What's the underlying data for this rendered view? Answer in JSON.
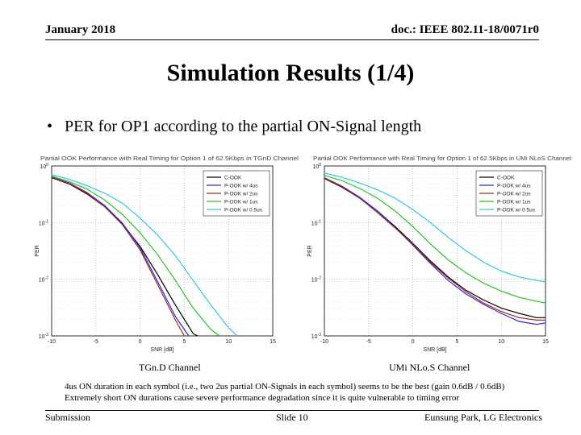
{
  "header": {
    "date": "January 2018",
    "doc": "doc.: IEEE 802.11-18/0071r0"
  },
  "title": "Simulation Results (1/4)",
  "bullet": {
    "symbol": "•",
    "text": "PER for OP1 according to the partial ON-Signal length"
  },
  "chart_data": [
    {
      "type": "line",
      "title": "Partial OOK Performance with Real Timing for Option 1 of 62.5Kbps in TGnD Channel",
      "xlabel": "SNR [dB]",
      "ylabel": "PER",
      "yscale": "log",
      "xlim": [
        -10,
        15
      ],
      "ylim": [
        0.001,
        1
      ],
      "xticks": [
        -10,
        -5,
        0,
        5,
        10,
        15
      ],
      "yticks": [
        {
          "value": 1,
          "base": "10",
          "exp": "0"
        },
        {
          "value": 0.1,
          "base": "10",
          "exp": "-1"
        },
        {
          "value": 0.01,
          "base": "10",
          "exp": "-2"
        },
        {
          "value": 0.001,
          "base": "10",
          "exp": "-3"
        }
      ],
      "grid": true,
      "legend_position": "top-right",
      "caption": "TGn.D Channel",
      "series": [
        {
          "name": "C-OOK",
          "color": "#000000",
          "x": [
            -10,
            -8,
            -6,
            -4,
            -2,
            0,
            2,
            4,
            6,
            6.5
          ],
          "y": [
            0.62,
            0.48,
            0.32,
            0.19,
            0.095,
            0.038,
            0.012,
            0.0035,
            0.0011,
            0.001
          ]
        },
        {
          "name": "P-OOK w/ 4us",
          "color": "#2a2ad6",
          "x": [
            -10,
            -8,
            -6,
            -4,
            -2,
            0,
            2,
            4,
            5.5
          ],
          "y": [
            0.64,
            0.5,
            0.34,
            0.2,
            0.098,
            0.036,
            0.009,
            0.0022,
            0.001
          ]
        },
        {
          "name": "P-OOK w/ 2us",
          "color": "#a0282a",
          "x": [
            -10,
            -8,
            -6,
            -4,
            -2,
            0,
            2,
            4,
            5
          ],
          "y": [
            0.63,
            0.49,
            0.33,
            0.19,
            0.092,
            0.033,
            0.008,
            0.0019,
            0.001
          ]
        },
        {
          "name": "P-OOK w/ 1us",
          "color": "#22c622",
          "x": [
            -10,
            -8,
            -6,
            -4,
            -2,
            0,
            2,
            4,
            6,
            8,
            9
          ],
          "y": [
            0.66,
            0.53,
            0.39,
            0.25,
            0.14,
            0.066,
            0.027,
            0.0095,
            0.0031,
            0.0013,
            0.001
          ]
        },
        {
          "name": "P-OOK w/ 0.5us",
          "color": "#2ec6e6",
          "x": [
            -10,
            -8,
            -6,
            -4,
            -2,
            0,
            2,
            4,
            6,
            8,
            10,
            11
          ],
          "y": [
            0.7,
            0.58,
            0.45,
            0.33,
            0.22,
            0.12,
            0.06,
            0.026,
            0.0095,
            0.0035,
            0.0014,
            0.001
          ]
        }
      ]
    },
    {
      "type": "line",
      "title": "Partial OOK Performance with Real Timing for Option 1 of 62.5Kbps in UMi NLoS Channel",
      "xlabel": "SNR [dB]",
      "ylabel": "PER",
      "yscale": "log",
      "xlim": [
        -10,
        15
      ],
      "ylim": [
        0.001,
        1
      ],
      "xticks": [
        -10,
        -5,
        0,
        5,
        10,
        15
      ],
      "yticks": [
        {
          "value": 1,
          "base": "10",
          "exp": "0"
        },
        {
          "value": 0.1,
          "base": "10",
          "exp": "-1"
        },
        {
          "value": 0.01,
          "base": "10",
          "exp": "-2"
        },
        {
          "value": 0.001,
          "base": "10",
          "exp": "-3"
        }
      ],
      "grid": true,
      "legend_position": "top-right",
      "caption": "UMi NLo.S Channel",
      "series": [
        {
          "name": "C-OOK",
          "color": "#000000",
          "x": [
            -10,
            -8,
            -6,
            -4,
            -2,
            0,
            2,
            4,
            6,
            8,
            10,
            12,
            14,
            15
          ],
          "y": [
            0.6,
            0.42,
            0.27,
            0.16,
            0.085,
            0.043,
            0.021,
            0.011,
            0.0064,
            0.0043,
            0.0031,
            0.0025,
            0.0021,
            0.0021
          ]
        },
        {
          "name": "P-OOK w/ 4us",
          "color": "#2a2ad6",
          "x": [
            -10,
            -8,
            -6,
            -4,
            -2,
            0,
            2,
            4,
            6,
            8,
            10,
            12,
            14,
            15
          ],
          "y": [
            0.62,
            0.44,
            0.28,
            0.16,
            0.082,
            0.04,
            0.019,
            0.0095,
            0.0055,
            0.0036,
            0.0025,
            0.0018,
            0.0016,
            0.0017
          ]
        },
        {
          "name": "P-OOK w/ 2us",
          "color": "#a0282a",
          "x": [
            -10,
            -8,
            -6,
            -4,
            -2,
            0,
            2,
            4,
            6,
            8,
            10,
            12,
            14,
            15
          ],
          "y": [
            0.61,
            0.43,
            0.27,
            0.15,
            0.08,
            0.042,
            0.02,
            0.0105,
            0.006,
            0.0038,
            0.0027,
            0.0021,
            0.0019,
            0.0019
          ]
        },
        {
          "name": "P-OOK w/ 1us",
          "color": "#22c622",
          "x": [
            -10,
            -8,
            -6,
            -4,
            -2,
            0,
            2,
            4,
            6,
            8,
            10,
            12,
            14,
            15
          ],
          "y": [
            0.68,
            0.55,
            0.4,
            0.27,
            0.16,
            0.085,
            0.042,
            0.022,
            0.013,
            0.0085,
            0.0062,
            0.0048,
            0.0041,
            0.0038
          ]
        },
        {
          "name": "P-OOK w/ 0.5us",
          "color": "#2ec6e6",
          "x": [
            -10,
            -8,
            -6,
            -4,
            -2,
            0,
            2,
            4,
            6,
            8,
            10,
            12,
            14,
            15
          ],
          "y": [
            0.75,
            0.63,
            0.5,
            0.38,
            0.27,
            0.17,
            0.1,
            0.055,
            0.032,
            0.02,
            0.014,
            0.011,
            0.0095,
            0.009
          ]
        }
      ]
    }
  ],
  "notes": [
    "4us ON duration in each symbol (i.e., two 2us partial ON-Signals in each symbol) seems to be the best (gain 0.6dB / 0.6dB)",
    "Extremely short ON durations cause severe performance degradation since it is quite vulnerable to timing error"
  ],
  "footer": {
    "left": "Submission",
    "center": "Slide 10",
    "right": "Eunsung Park, LG Electronics"
  }
}
